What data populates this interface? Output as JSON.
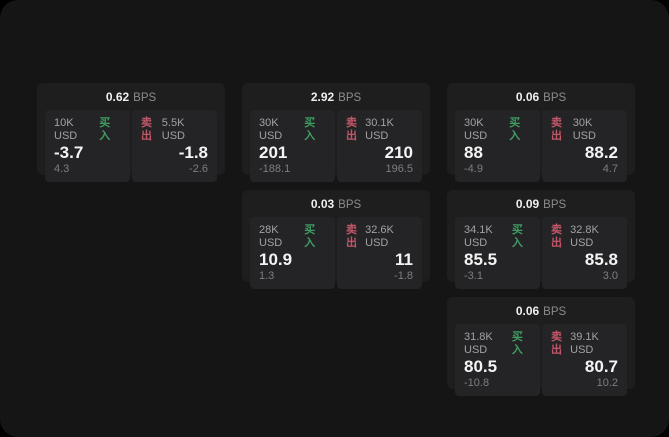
{
  "labels": {
    "bps_unit": "BPS",
    "buy": "买入",
    "sell": "卖出"
  },
  "colors": {
    "green": "#3f9d63",
    "red": "#c25668",
    "page_bg": "#151515",
    "card_bg": "#1e1e1e",
    "panel_bg": "#242426"
  },
  "cards": [
    {
      "row": 1,
      "col": 1,
      "bps": "0.62",
      "buy": {
        "amount": "10K USD",
        "value": "-3.7",
        "sub": "4.3"
      },
      "sell": {
        "amount": "5.5K USD",
        "value": "-1.8",
        "sub": "-2.6"
      }
    },
    {
      "row": 1,
      "col": 2,
      "bps": "2.92",
      "buy": {
        "amount": "30K USD",
        "value": "201",
        "sub": "-188.1"
      },
      "sell": {
        "amount": "30.1K USD",
        "value": "210",
        "sub": "196.5"
      }
    },
    {
      "row": 1,
      "col": 3,
      "bps": "0.06",
      "buy": {
        "amount": "30K USD",
        "value": "88",
        "sub": "-4.9"
      },
      "sell": {
        "amount": "30K USD",
        "value": "88.2",
        "sub": "4.7"
      }
    },
    {
      "row": 2,
      "col": 2,
      "bps": "0.03",
      "buy": {
        "amount": "28K USD",
        "value": "10.9",
        "sub": "1.3"
      },
      "sell": {
        "amount": "32.6K USD",
        "value": "11",
        "sub": "-1.8"
      }
    },
    {
      "row": 2,
      "col": 3,
      "bps": "0.09",
      "buy": {
        "amount": "34.1K USD",
        "value": "85.5",
        "sub": "-3.1"
      },
      "sell": {
        "amount": "32.8K USD",
        "value": "85.8",
        "sub": "3.0"
      }
    },
    {
      "row": 3,
      "col": 3,
      "bps": "0.06",
      "buy": {
        "amount": "31.8K USD",
        "value": "80.5",
        "sub": "-10.8"
      },
      "sell": {
        "amount": "39.1K USD",
        "value": "80.7",
        "sub": "10.2"
      }
    }
  ]
}
